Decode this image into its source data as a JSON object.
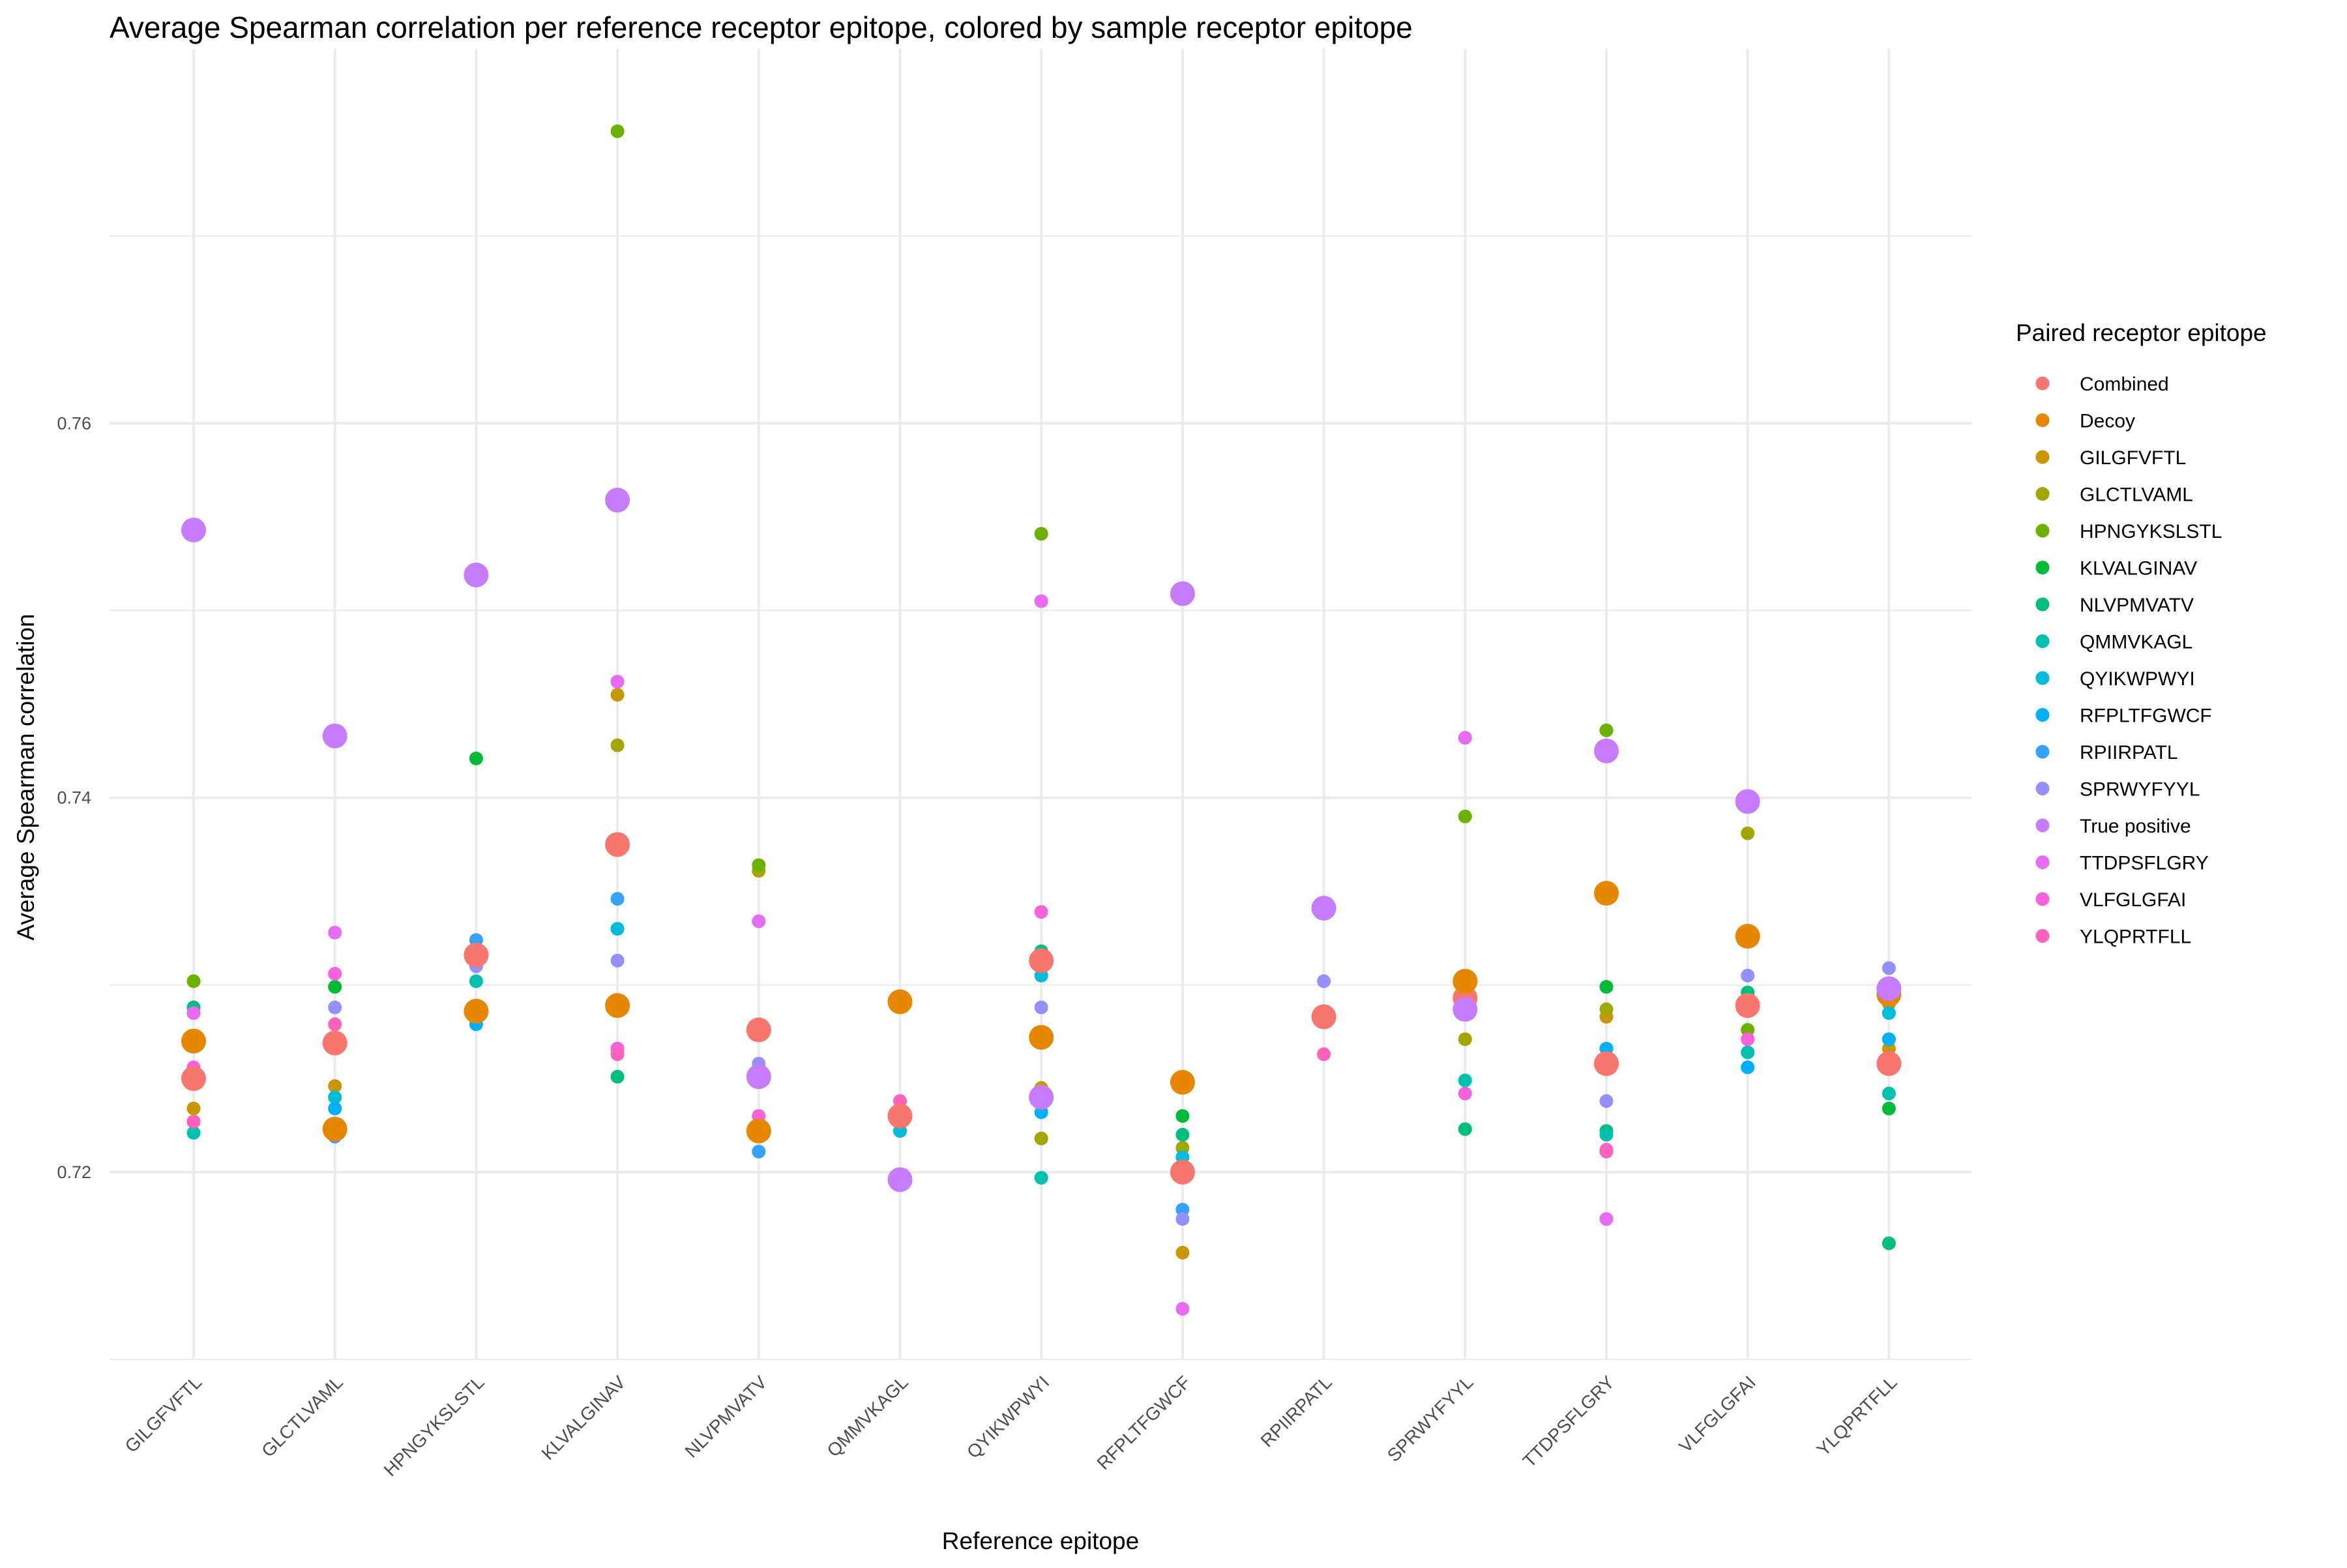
{
  "chart_data": {
    "type": "scatter",
    "title": "Average Spearman correlation per reference receptor epitope, colored by sample receptor epitope",
    "xlabel": "Reference epitope",
    "ylabel": "Average Spearman correlation",
    "categories": [
      "GILGFVFTL",
      "GLCTLVAML",
      "HPNGYKSLSTL",
      "KLVALGINAV",
      "NLVPMVATV",
      "QMMVKAGL",
      "QYIKWPWYI",
      "RFPLTFGWCF",
      "RPIIRPATL",
      "SPRWYFYYL",
      "TTDPSFLGRY",
      "VLFGLGFAI",
      "YLQPRTFLL"
    ],
    "ylim": [
      0.71,
      0.78
    ],
    "yticks": [
      0.72,
      0.74,
      0.76
    ],
    "y_tick_labels": [
      "0.72",
      "0.74",
      "0.76"
    ],
    "grid": true,
    "legend_title": "Paired receptor epitope",
    "legend_position": "right",
    "series": [
      {
        "name": "Combined",
        "color": "#F8766D",
        "size": "large",
        "points": [
          [
            "GILGFVFTL",
            0.725
          ],
          [
            "GLCTLVAML",
            0.7269
          ],
          [
            "HPNGYKSLSTL",
            0.7316
          ],
          [
            "KLVALGINAV",
            0.7375
          ],
          [
            "NLVPMVATV",
            0.7276
          ],
          [
            "QMMVKAGL",
            0.723
          ],
          [
            "QYIKWPWYI",
            0.7313
          ],
          [
            "RFPLTFGWCF",
            0.72
          ],
          [
            "RPIIRPATL",
            0.7283
          ],
          [
            "SPRWYFYYL",
            0.7293
          ],
          [
            "TTDPSFLGRY",
            0.7258
          ],
          [
            "VLFGLGFAI",
            0.7289
          ],
          [
            "YLQPRTFLL",
            0.7258
          ]
        ]
      },
      {
        "name": "Decoy",
        "color": "#E58700",
        "size": "large",
        "points": [
          [
            "GILGFVFTL",
            0.727
          ],
          [
            "GLCTLVAML",
            0.7223
          ],
          [
            "HPNGYKSLSTL",
            0.7286
          ],
          [
            "KLVALGINAV",
            0.7289
          ],
          [
            "NLVPMVATV",
            0.7222
          ],
          [
            "QMMVKAGL",
            0.7291
          ],
          [
            "QYIKWPWYI",
            0.7272
          ],
          [
            "RFPLTFGWCF",
            0.7248
          ],
          [
            "SPRWYFYYL",
            0.7302
          ],
          [
            "TTDPSFLGRY",
            0.7349
          ],
          [
            "VLFGLGFAI",
            0.7326
          ],
          [
            "YLQPRTFLL",
            0.7295
          ]
        ]
      },
      {
        "name": "GILGFVFTL",
        "color": "#C99800",
        "size": "small",
        "points": [
          [
            "GILGFVFTL",
            0.7234
          ],
          [
            "GLCTLVAML",
            0.7246
          ],
          [
            "KLVALGINAV",
            0.7455
          ],
          [
            "NLVPMVATV",
            0.7224
          ],
          [
            "QYIKWPWYI",
            0.7245
          ],
          [
            "RFPLTFGWCF",
            0.7157
          ],
          [
            "TTDPSFLGRY",
            0.7283
          ],
          [
            "YLQPRTFLL",
            0.7266
          ]
        ]
      },
      {
        "name": "GLCTLVAML",
        "color": "#A3A500",
        "size": "small",
        "points": [
          [
            "KLVALGINAV",
            0.7428
          ],
          [
            "NLVPMVATV",
            0.7361
          ],
          [
            "QYIKWPWYI",
            0.7218
          ],
          [
            "RFPLTFGWCF",
            0.7213
          ],
          [
            "SPRWYFYYL",
            0.7271
          ],
          [
            "TTDPSFLGRY",
            0.7287
          ],
          [
            "VLFGLGFAI",
            0.7381
          ],
          [
            "YLQPRTFLL",
            0.729
          ]
        ]
      },
      {
        "name": "HPNGYKSLSTL",
        "color": "#6BB100",
        "size": "small",
        "points": [
          [
            "GILGFVFTL",
            0.7302
          ],
          [
            "KLVALGINAV",
            0.7756
          ],
          [
            "NLVPMVATV",
            0.7364
          ],
          [
            "QYIKWPWYI",
            0.7541
          ],
          [
            "SPRWYFYYL",
            0.739
          ],
          [
            "TTDPSFLGRY",
            0.7436
          ],
          [
            "VLFGLGFAI",
            0.7276
          ]
        ]
      },
      {
        "name": "KLVALGINAV",
        "color": "#00BA38",
        "size": "small",
        "points": [
          [
            "GLCTLVAML",
            0.7299
          ],
          [
            "HPNGYKSLSTL",
            0.7421
          ],
          [
            "RFPLTFGWCF",
            0.723
          ],
          [
            "TTDPSFLGRY",
            0.7299
          ],
          [
            "YLQPRTFLL",
            0.7234
          ]
        ]
      },
      {
        "name": "NLVPMVATV",
        "color": "#00BF7D",
        "size": "small",
        "points": [
          [
            "GILGFVFTL",
            0.7288
          ],
          [
            "KLVALGINAV",
            0.7251
          ],
          [
            "NLVPMVATV",
            0.7252
          ],
          [
            "QYIKWPWYI",
            0.7318
          ],
          [
            "RFPLTFGWCF",
            0.722
          ],
          [
            "SPRWYFYYL",
            0.7223
          ],
          [
            "TTDPSFLGRY",
            0.7222
          ],
          [
            "VLFGLGFAI",
            0.7296
          ],
          [
            "YLQPRTFLL",
            0.7162
          ]
        ]
      },
      {
        "name": "QMMVKAGL",
        "color": "#00C0AF",
        "size": "small",
        "points": [
          [
            "GILGFVFTL",
            0.7221
          ],
          [
            "HPNGYKSLSTL",
            0.7302
          ],
          [
            "NLVPMVATV",
            0.725
          ],
          [
            "QYIKWPWYI",
            0.7197
          ],
          [
            "SPRWYFYYL",
            0.7249
          ],
          [
            "TTDPSFLGRY",
            0.722
          ],
          [
            "VLFGLGFAI",
            0.7264
          ],
          [
            "YLQPRTFLL",
            0.7242
          ]
        ]
      },
      {
        "name": "QYIKWPWYI",
        "color": "#00BCD8",
        "size": "small",
        "points": [
          [
            "GILGFVFTL",
            0.7227
          ],
          [
            "GLCTLVAML",
            0.724
          ],
          [
            "KLVALGINAV",
            0.733
          ],
          [
            "QMMVKAGL",
            0.7222
          ],
          [
            "QYIKWPWYI",
            0.7305
          ],
          [
            "RFPLTFGWCF",
            0.7208
          ],
          [
            "YLQPRTFLL",
            0.7285
          ]
        ]
      },
      {
        "name": "RFPLTFGWCF",
        "color": "#00B0F6",
        "size": "small",
        "points": [
          [
            "GILGFVFTL",
            0.727
          ],
          [
            "GLCTLVAML",
            0.7234
          ],
          [
            "HPNGYKSLSTL",
            0.7279
          ],
          [
            "KLVALGINAV",
            0.7266
          ],
          [
            "QYIKWPWYI",
            0.7232
          ],
          [
            "TTDPSFLGRY",
            0.7266
          ],
          [
            "VLFGLGFAI",
            0.7256
          ],
          [
            "YLQPRTFLL",
            0.7271
          ]
        ]
      },
      {
        "name": "RPIIRPATL",
        "color": "#35A2FF",
        "size": "small",
        "points": [
          [
            "GLCTLVAML",
            0.7219
          ],
          [
            "HPNGYKSLSTL",
            0.7324
          ],
          [
            "KLVALGINAV",
            0.7346
          ],
          [
            "NLVPMVATV",
            0.7211
          ],
          [
            "RFPLTFGWCF",
            0.718
          ]
        ]
      },
      {
        "name": "SPRWYFYYL",
        "color": "#9590FF",
        "size": "small",
        "points": [
          [
            "GILGFVFTL",
            0.7268
          ],
          [
            "GLCTLVAML",
            0.7288
          ],
          [
            "HPNGYKSLSTL",
            0.731
          ],
          [
            "KLVALGINAV",
            0.7313
          ],
          [
            "NLVPMVATV",
            0.7258
          ],
          [
            "QYIKWPWYI",
            0.7288
          ],
          [
            "RFPLTFGWCF",
            0.7175
          ],
          [
            "RPIIRPATL",
            0.7302
          ],
          [
            "TTDPSFLGRY",
            0.7238
          ],
          [
            "VLFGLGFAI",
            0.7305
          ],
          [
            "YLQPRTFLL",
            0.7309
          ]
        ]
      },
      {
        "name": "True positive",
        "color": "#C77CFF",
        "size": "large",
        "points": [
          [
            "GILGFVFTL",
            0.7543
          ],
          [
            "GLCTLVAML",
            0.7433
          ],
          [
            "HPNGYKSLSTL",
            0.7519
          ],
          [
            "KLVALGINAV",
            0.7559
          ],
          [
            "NLVPMVATV",
            0.7251
          ],
          [
            "QMMVKAGL",
            0.7196
          ],
          [
            "QYIKWPWYI",
            0.724
          ],
          [
            "RFPLTFGWCF",
            0.7509
          ],
          [
            "RPIIRPATL",
            0.7341
          ],
          [
            "SPRWYFYYL",
            0.7287
          ],
          [
            "TTDPSFLGRY",
            0.7425
          ],
          [
            "VLFGLGFAI",
            0.7398
          ],
          [
            "YLQPRTFLL",
            0.7298
          ]
        ]
      },
      {
        "name": "TTDPSFLGRY",
        "color": "#E76BF3",
        "size": "small",
        "points": [
          [
            "GILGFVFTL",
            0.7285
          ],
          [
            "GLCTLVAML",
            0.7328
          ],
          [
            "KLVALGINAV",
            0.7462
          ],
          [
            "NLVPMVATV",
            0.7334
          ],
          [
            "QYIKWPWYI",
            0.7505
          ],
          [
            "RFPLTFGWCF",
            0.7127
          ],
          [
            "SPRWYFYYL",
            0.7432
          ],
          [
            "TTDPSFLGRY",
            0.7175
          ]
        ]
      },
      {
        "name": "VLFGLGFAI",
        "color": "#FA62DB",
        "size": "small",
        "points": [
          [
            "GILGFVFTL",
            0.7256
          ],
          [
            "GLCTLVAML",
            0.7306
          ],
          [
            "HPNGYKSLSTL",
            0.7288
          ],
          [
            "KLVALGINAV",
            0.7266
          ],
          [
            "NLVPMVATV",
            0.723
          ],
          [
            "QYIKWPWYI",
            0.7339
          ],
          [
            "RFPLTFGWCF",
            0.7248
          ],
          [
            "SPRWYFYYL",
            0.7242
          ],
          [
            "TTDPSFLGRY",
            0.7212
          ],
          [
            "VLFGLGFAI",
            0.7271
          ]
        ]
      },
      {
        "name": "YLQPRTFLL",
        "color": "#FF62BC",
        "size": "small",
        "points": [
          [
            "GILGFVFTL",
            0.7227
          ],
          [
            "GLCTLVAML",
            0.7279
          ],
          [
            "KLVALGINAV",
            0.7263
          ],
          [
            "QMMVKAGL",
            0.7238
          ],
          [
            "RPIIRPATL",
            0.7263
          ],
          [
            "TTDPSFLGRY",
            0.7211
          ]
        ]
      }
    ]
  }
}
